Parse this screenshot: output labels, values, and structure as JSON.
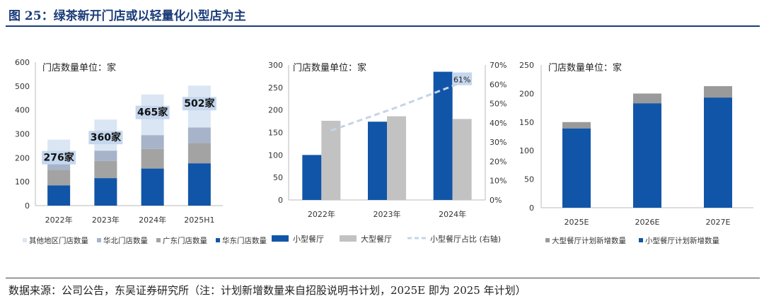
{
  "header": {
    "title": "图 25：绿茶新开门店或以轻量化小型店为主"
  },
  "footer": {
    "source": "数据来源：公司公告，东吴证券研究所（注：计划新增数量来自招股说明书计划，2025E 即为 2025 年计划）"
  },
  "colors": {
    "dark_blue": "#1155a8",
    "mid_gray": "#9a9a9a",
    "light_gray": "#c2c2c2",
    "slate": "#a6b3c9",
    "light_blue": "#dbe6f4",
    "line": "#c5d4e8",
    "label_bg": "#c5d7ee"
  },
  "chart_data": [
    {
      "type": "bar",
      "stacked": true,
      "note": "门店数量单位：家",
      "categories": [
        "2022年",
        "2023年",
        "2024年",
        "2025H1"
      ],
      "ylim": [
        0,
        600
      ],
      "yticks": [
        "0",
        "100",
        "200",
        "300",
        "400",
        "500",
        "600"
      ],
      "series": [
        {
          "name": "华东门店数量",
          "values": [
            85,
            115,
            155,
            177
          ],
          "color": "#1155a8"
        },
        {
          "name": "广东门店数量",
          "values": [
            65,
            72,
            82,
            85
          ],
          "color": "#a3a3a3"
        },
        {
          "name": "华北门店数量",
          "values": [
            40,
            43,
            58,
            65
          ],
          "color": "#a6b3c9"
        },
        {
          "name": "其他地区门店数量",
          "values": [
            86,
            130,
            170,
            175
          ],
          "color": "#dbe6f4"
        }
      ],
      "totals": [
        276,
        360,
        465,
        502
      ],
      "total_labels": [
        "276家",
        "360家",
        "465家",
        "502家"
      ],
      "legend_order": [
        "其他地区门店数量",
        "华北门店数量",
        "广东门店数量",
        "华东门店数量"
      ],
      "legend": "bottom"
    },
    {
      "type": "bar",
      "note": "门店数量单位：家",
      "categories": [
        "2022年",
        "2023年",
        "2024年"
      ],
      "ylim": [
        0,
        300
      ],
      "yticks": [
        "0",
        "50",
        "100",
        "150",
        "200",
        "250",
        "300"
      ],
      "y2lim": [
        0,
        70
      ],
      "y2ticks": [
        "0%",
        "10%",
        "20%",
        "30%",
        "40%",
        "50%",
        "60%",
        "70%"
      ],
      "series": [
        {
          "name": "小型餐厅",
          "values": [
            100,
            174,
            285
          ],
          "color": "#1155a8"
        },
        {
          "name": "大型餐厅",
          "values": [
            176,
            186,
            180
          ],
          "color": "#c2c2c2"
        },
        {
          "name": "小型餐厅占比 (右轴)",
          "type": "line",
          "axis": "right",
          "values": [
            36,
            48,
            61
          ],
          "color": "#c5d4e8"
        }
      ],
      "line_label": "61%",
      "legend": "bottom"
    },
    {
      "type": "bar",
      "stacked": true,
      "note": "门店数量单位：家",
      "categories": [
        "2025E",
        "2026E",
        "2027E"
      ],
      "ylim": [
        0,
        250
      ],
      "yticks": [
        "0",
        "50",
        "100",
        "150",
        "200",
        "250"
      ],
      "series": [
        {
          "name": "小型餐厅计划新增数量",
          "values": [
            139,
            183,
            193
          ],
          "color": "#1155a8"
        },
        {
          "name": "大型餐厅计划新增数量",
          "values": [
            11,
            17,
            20
          ],
          "color": "#9a9a9a"
        }
      ],
      "legend_order": [
        "大型餐厅计划新增数量",
        "小型餐厅计划新增数量"
      ],
      "legend": "bottom"
    }
  ]
}
